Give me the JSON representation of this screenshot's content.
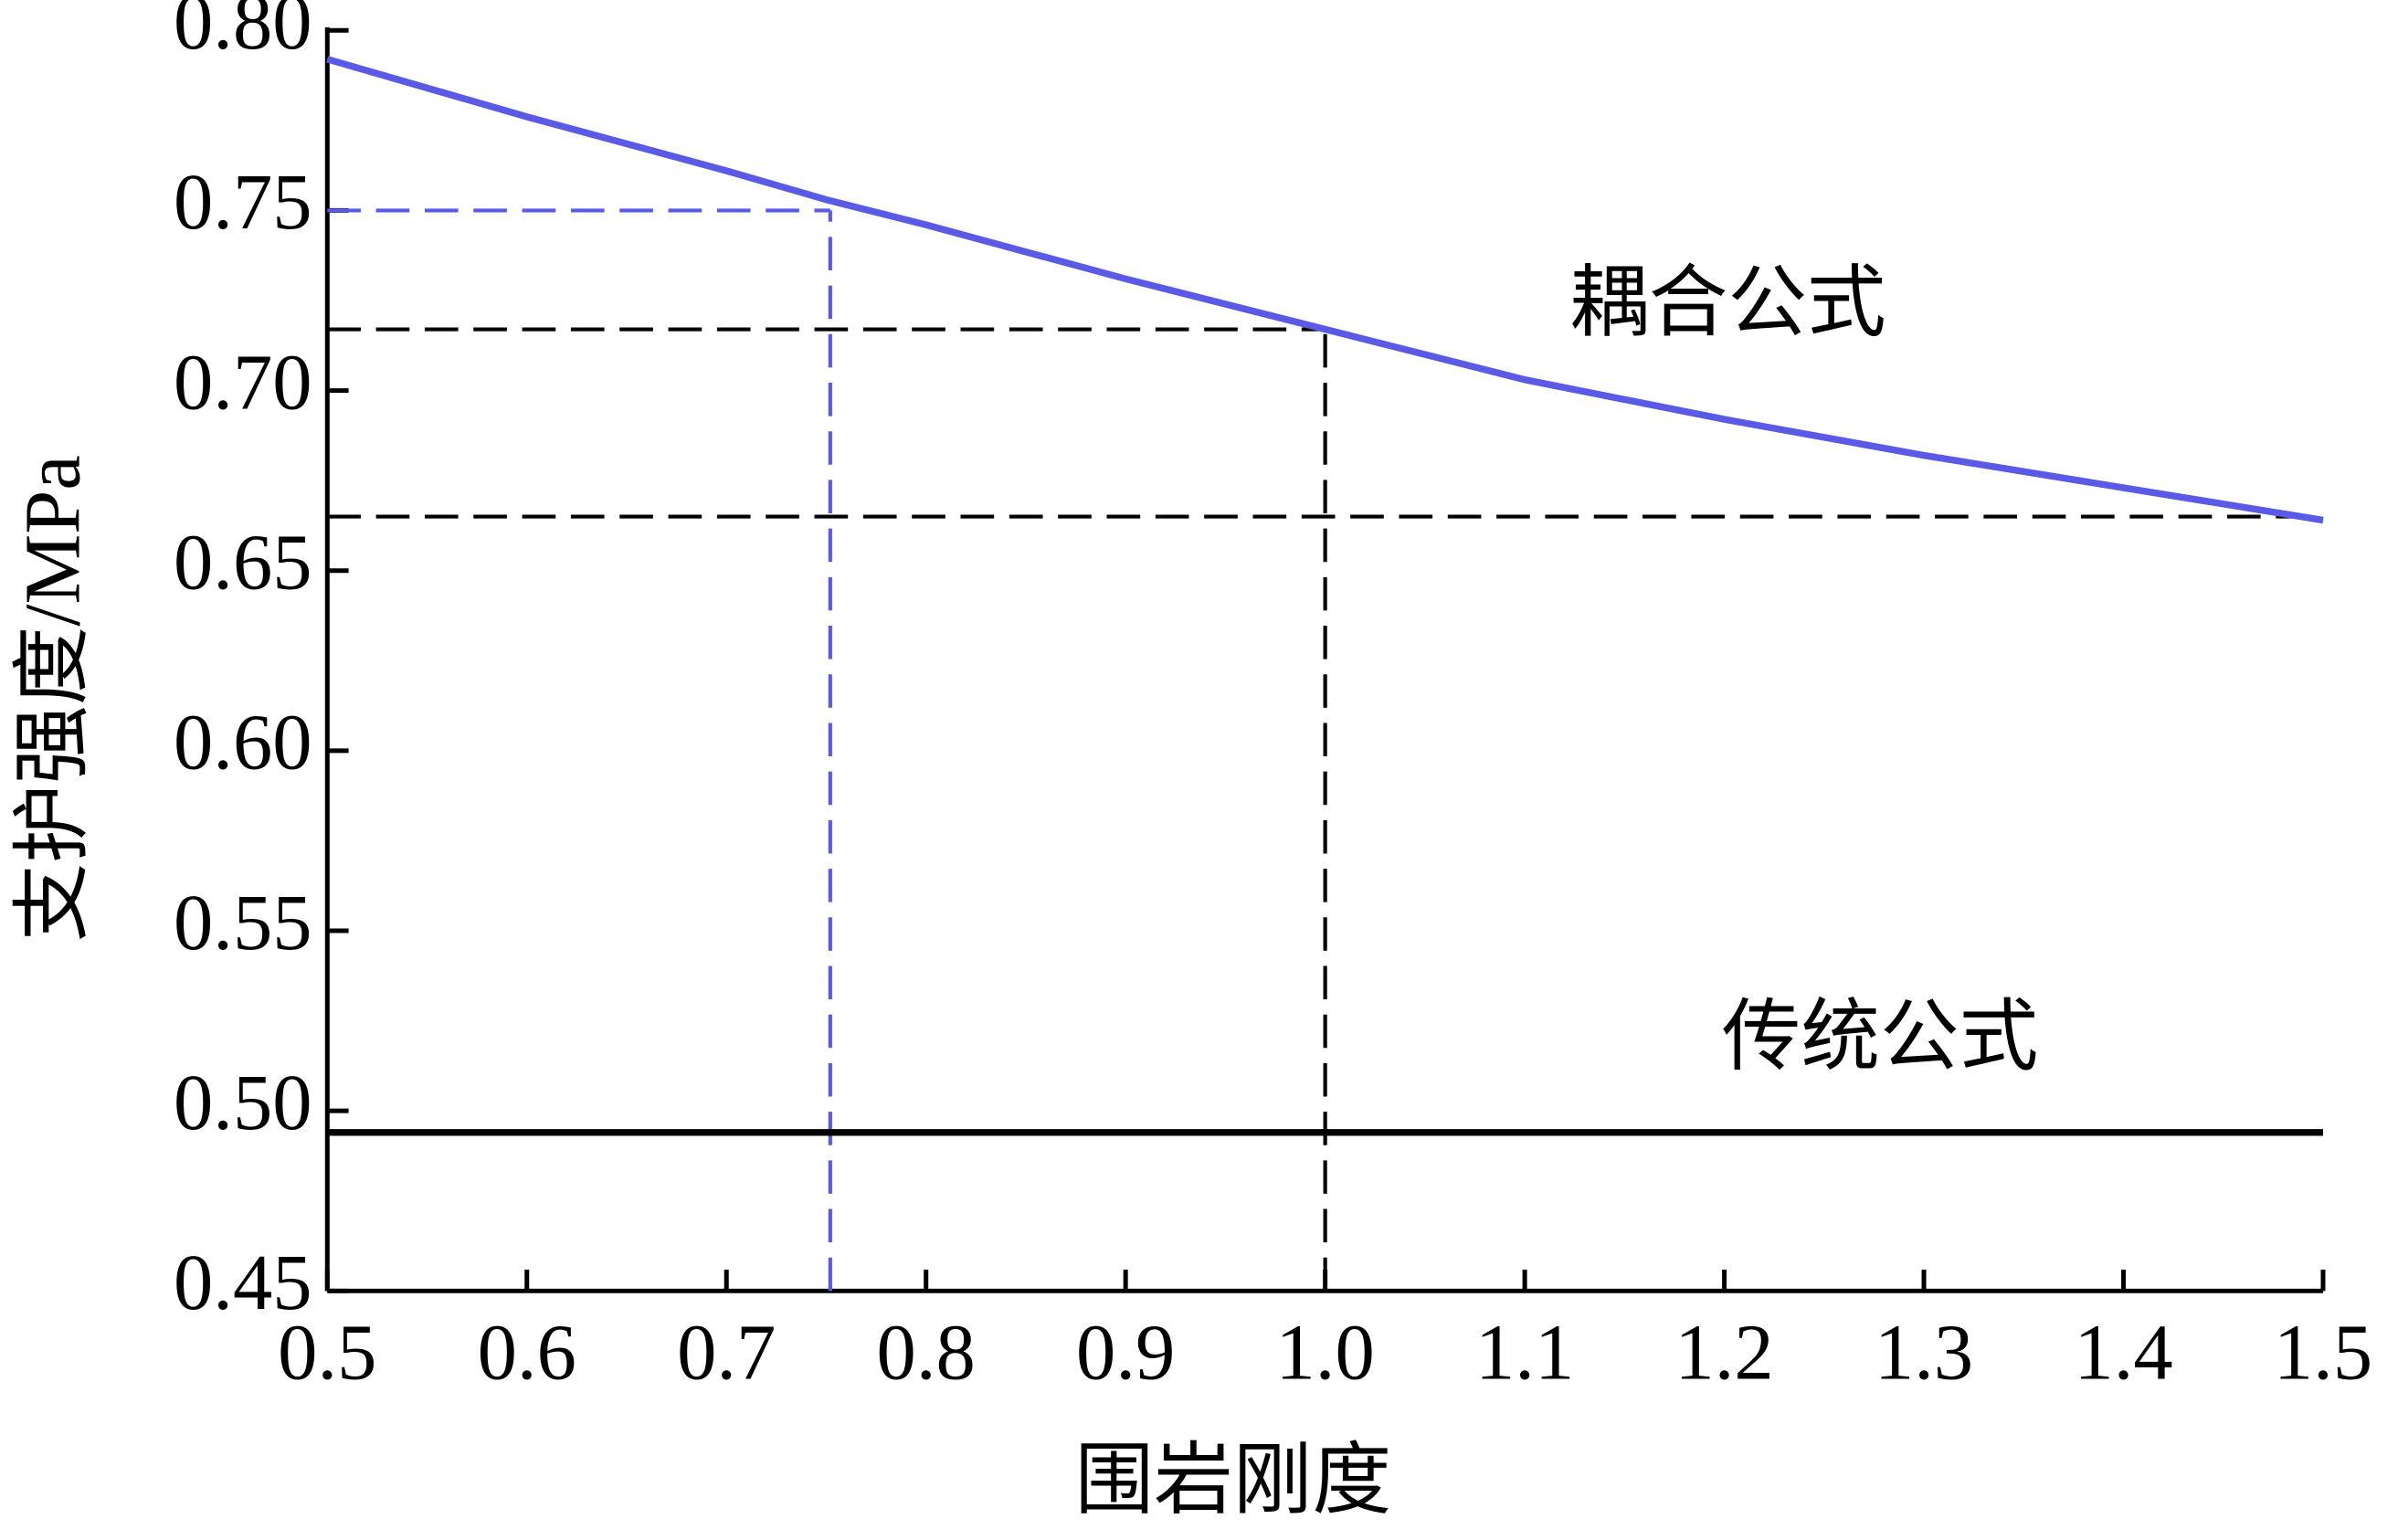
{
  "chart_data": {
    "type": "line",
    "x_label": "围岩刚度",
    "y_label": "支护强度/MPa",
    "x": [
      0.5,
      0.6,
      0.7,
      0.75,
      0.8,
      0.9,
      1.0,
      1.1,
      1.2,
      1.3,
      1.4,
      1.5
    ],
    "series": [
      {
        "name": "耦合公式",
        "color": "#5a5ae6",
        "values": [
          0.792,
          0.776,
          0.761,
          0.753,
          0.746,
          0.731,
          0.717,
          0.703,
          0.692,
          0.682,
          0.673,
          0.664
        ]
      },
      {
        "name": "传统公式",
        "color": "#000000",
        "values": [
          0.494,
          0.494,
          0.494,
          0.494,
          0.494,
          0.494,
          0.494,
          0.494,
          0.494,
          0.494,
          0.494,
          0.494
        ]
      }
    ],
    "guides": [
      {
        "x": 0.752,
        "y": 0.75,
        "color": "#5a5ae6"
      },
      {
        "x": 1.0,
        "y": 0.717,
        "color": "#000000"
      },
      {
        "y": 0.665,
        "color": "#000000"
      }
    ],
    "xlim": [
      0.5,
      1.5
    ],
    "ylim": [
      0.45,
      0.8
    ],
    "xticks": [
      0.5,
      0.6,
      0.7,
      0.8,
      0.9,
      {
        "value": 1.0,
        "label": "1.0"
      },
      1.1,
      1.2,
      1.3,
      1.4,
      1.5
    ],
    "yticks": [
      0.45,
      {
        "value": 0.5,
        "label": "0.50"
      },
      0.55,
      {
        "value": 0.6,
        "label": "0.60"
      },
      0.65,
      {
        "value": 0.7,
        "label": "0.70"
      },
      0.75,
      {
        "value": 0.8,
        "label": "0.80"
      }
    ],
    "grid": false
  }
}
